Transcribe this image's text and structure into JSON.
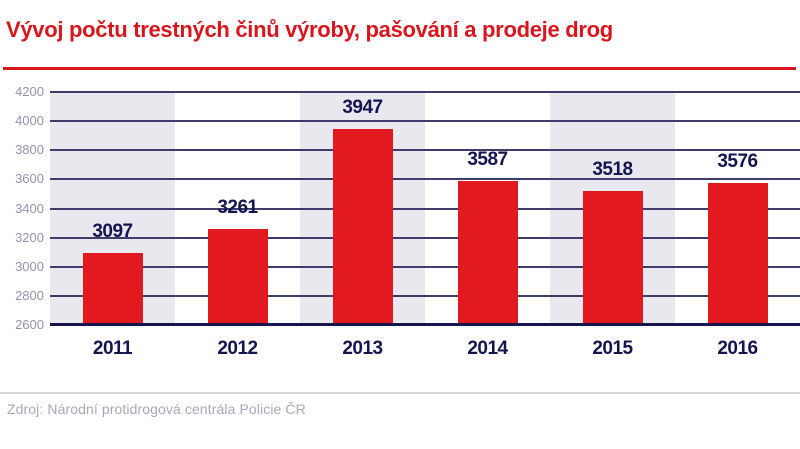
{
  "title": "Vývoj počtu trestných činů výroby, pašování a prodeje drog",
  "source": "Zdroj: Národní protidrogová centrála Policie ČR",
  "colors": {
    "title_red": "#d8161e",
    "rule_red": "#d8161e",
    "bar_red": "#e2191f",
    "band_gray": "#e8e8ee",
    "gridline_navy": "#3d3d6b",
    "axis_navy": "#16164d",
    "label_navy": "#141450",
    "tick_gray": "#9393af",
    "divider_gray": "#d4d4da",
    "source_gray": "#a7a7ba"
  },
  "chart_data": {
    "type": "bar",
    "categories": [
      "2011",
      "2012",
      "2013",
      "2014",
      "2015",
      "2016"
    ],
    "values": [
      3097,
      3261,
      3947,
      3587,
      3518,
      3576
    ],
    "title": "Vývoj počtu trestných činů výroby, pašování a prodeje drog",
    "xlabel": "",
    "ylabel": "",
    "ylim": [
      2600,
      4200
    ],
    "ytick_step": 200,
    "ytick_labels": [
      "2600",
      "2800",
      "3000",
      "3200",
      "3400",
      "3600",
      "3800",
      "4000",
      "4200"
    ],
    "grid": true,
    "legend": false,
    "alternating_column_bands": true
  }
}
